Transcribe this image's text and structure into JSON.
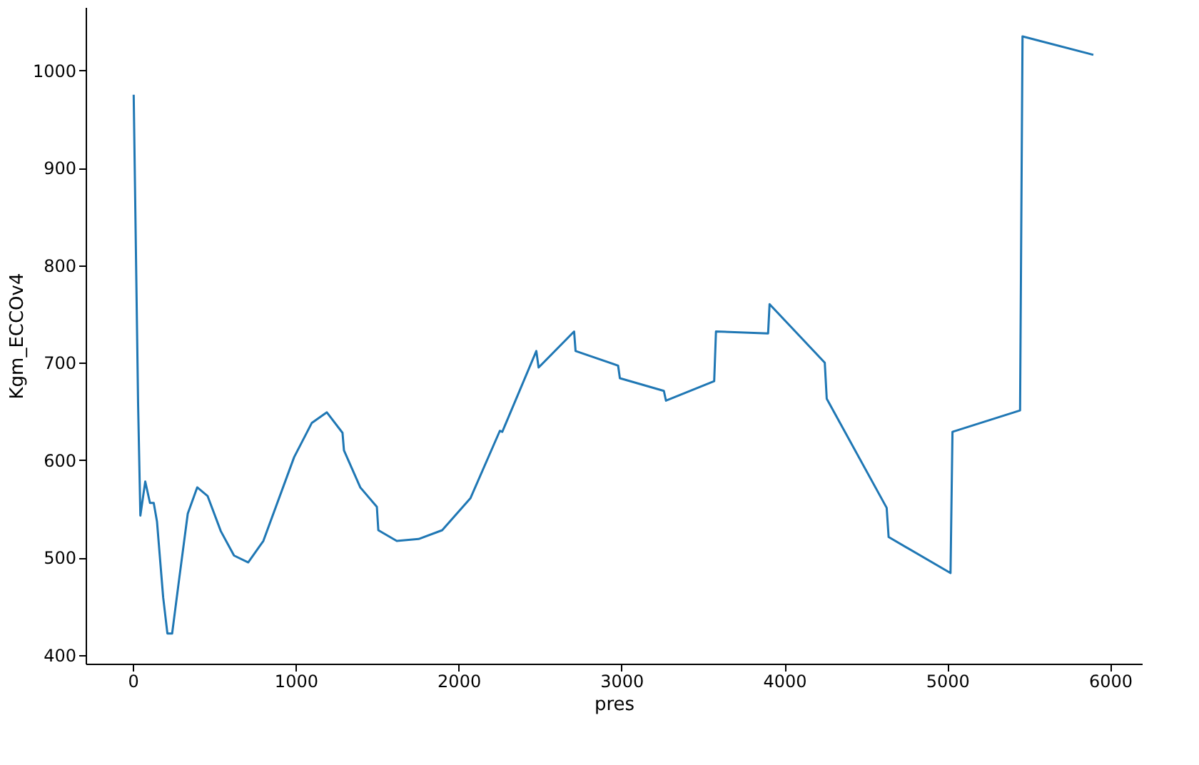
{
  "chart_data": {
    "type": "line",
    "xlabel": "pres",
    "ylabel": "Kgm_ECCOv4",
    "xlim": [
      -290,
      6195
    ],
    "ylim": [
      391,
      1065
    ],
    "xticks": [
      0,
      1000,
      2000,
      3000,
      4000,
      5000,
      6000
    ],
    "yticks": [
      400,
      500,
      600,
      700,
      800,
      900,
      1000
    ],
    "grid": false,
    "legend": false,
    "x": [
      5,
      32,
      46,
      76,
      105,
      128,
      148,
      186,
      212,
      241,
      285,
      337,
      395,
      459,
      540,
      621,
      708,
      801,
      990,
      1098,
      1191,
      1287,
      1296,
      1396,
      1498,
      1507,
      1620,
      1754,
      1899,
      2073,
      2253,
      2268,
      2477,
      2491,
      2709,
      2718,
      2979,
      2990,
      3260,
      3273,
      3569,
      3580,
      3900,
      3909,
      4248,
      4260,
      4628,
      4640,
      5020,
      5032,
      5447,
      5462,
      5897
    ],
    "series": [
      {
        "color": "#1f77b4",
        "values": [
          975,
          658,
          543,
          578,
          556,
          556,
          537,
          459,
          422,
          422,
          479,
          545,
          572,
          563,
          527,
          502,
          495,
          517,
          603,
          638,
          649,
          628,
          610,
          572,
          552,
          528,
          517,
          519,
          528,
          561,
          630,
          629,
          712,
          695,
          732,
          712,
          697,
          684,
          671,
          661,
          681,
          732,
          730,
          760,
          700,
          663,
          551,
          521,
          484,
          629,
          651,
          1035,
          1016
        ]
      }
    ]
  }
}
